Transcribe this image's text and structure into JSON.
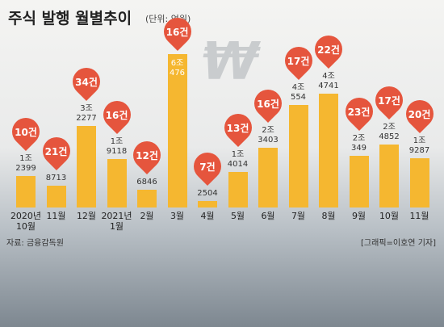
{
  "title": "주식 발행 월별추이",
  "unit": "(단위: 억원)",
  "won_symbol": "₩",
  "chart_data": {
    "type": "bar",
    "categories": [
      "2020년\n10월",
      "11월",
      "12월",
      "2021년\n1월",
      "2월",
      "3월",
      "4월",
      "5월",
      "6월",
      "7월",
      "8월",
      "9월",
      "10월",
      "11월"
    ],
    "values": [
      12399,
      8713,
      32277,
      19118,
      6846,
      60476,
      2504,
      14014,
      23403,
      40554,
      44741,
      20349,
      24852,
      19287
    ],
    "value_labels": [
      "1조\n2399",
      "8713",
      "3조\n2277",
      "1조\n9118",
      "6846",
      "6조\n476",
      "2504",
      "1조\n4014",
      "2조\n3403",
      "4조\n554",
      "4조\n4741",
      "2조\n349",
      "2조\n4852",
      "1조\n9287"
    ],
    "counts": [
      10,
      21,
      34,
      16,
      12,
      16,
      7,
      13,
      16,
      17,
      22,
      23,
      17,
      20
    ],
    "count_labels": [
      "10건",
      "21건",
      "34건",
      "16건",
      "12건",
      "16건",
      "7건",
      "13건",
      "16건",
      "17건",
      "22건",
      "23건",
      "17건",
      "20건"
    ],
    "color": "#f5b730"
  },
  "source": "자료: 금융감독원",
  "credit": "[그래픽=이호연 기자]"
}
